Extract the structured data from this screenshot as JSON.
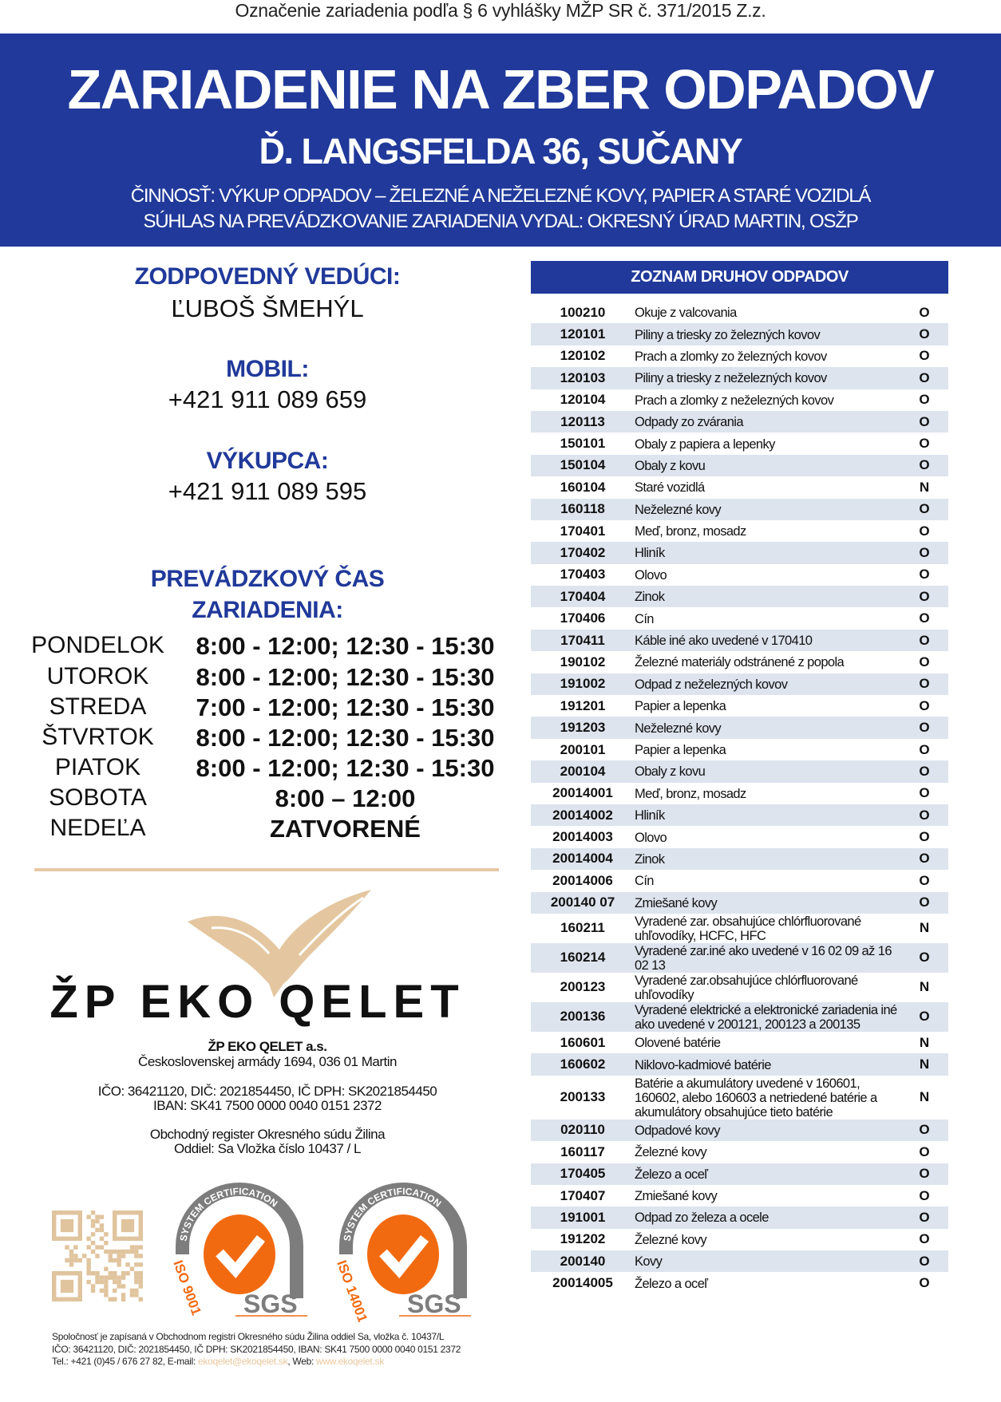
{
  "top_note": "Označenie zariadenia podľa § 6 vyhlášky MŽP SR č. 371/2015 Z.z.",
  "banner": {
    "title": "ZARIADENIE NA ZBER ODPADOV",
    "address": "Ď. LANGSFELDA 36, SUČANY",
    "activity": "ČINNOSŤ: VÝKUP  ODPADOV – ŽELEZNÉ A NEŽELEZNÉ KOVY, PAPIER A STARÉ VOZIDLÁ",
    "permit": "SÚHLAS NA PREVÁDZKOVANIE ZARIADENIA VYDAL: OKRESNÝ ÚRAD MARTIN, OSŽP"
  },
  "contacts": {
    "manager_label": "ZODPOVEDNÝ VEDÚCI:",
    "manager_name": "ĽUBOŠ ŠMEHÝL",
    "mobile_label": "MOBIL:",
    "mobile": "+421 911 089 659",
    "buyer_label": "VÝKUPCA:",
    "buyer": "+421 911 089 595"
  },
  "hours": {
    "title_line1": "PREVÁDZKOVÝ ČAS",
    "title_line2": "ZARIADENIA:",
    "days": [
      {
        "day": "PONDELOK",
        "time": "8:00 - 12:00; 12:30 - 15:30"
      },
      {
        "day": "UTOROK",
        "time": "8:00 - 12:00; 12:30 - 15:30"
      },
      {
        "day": "STREDA",
        "time": "7:00 - 12:00; 12:30 - 15:30"
      },
      {
        "day": "ŠTVRTOK",
        "time": "8:00 - 12:00; 12:30 - 15:30"
      },
      {
        "day": "PIATOK",
        "time": "8:00 - 12:00; 12:30 - 15:30"
      },
      {
        "day": "SOBOTA",
        "time": "8:00 – 12:00"
      },
      {
        "day": "NEDEĽA",
        "time": "ZATVORENÉ"
      }
    ]
  },
  "company": {
    "logo_text": "ŽP EKO QELET",
    "name": "ŽP EKO QELET a.s.",
    "address": "Československej armády 1694, 036 01 Martin",
    "ids": "IČO: 36421120, DIČ: 2021854450, IČ DPH: SK2021854450",
    "iban": "IBAN: SK41 7500 0000 0040 0151 2372",
    "register": "Obchodný register Okresného súdu Žilina",
    "section": "Oddiel: Sa Vložka číslo 10437 / L"
  },
  "certifications": [
    {
      "arc": "SYSTEM CERTIFICATION",
      "standard": "ISO 9001",
      "brand": "SGS"
    },
    {
      "arc": "SYSTEM CERTIFICATION",
      "standard": "ISO 14001",
      "brand": "SGS"
    }
  ],
  "footer": {
    "line1": "Spoločnosť je zapísaná v Obchodnom registri Okresného súdu Žilina oddiel Sa, vložka č. 10437/L",
    "line2": "IČO: 36421120, DIČ: 2021854450, IČ DPH: SK2021854450, IBAN: SK41 7500 0000 0040 0151 2372",
    "tel": "Tel.:  +421 (0)45 / 676 27 82, E-mail: ",
    "email": "ekoqelet@ekoqelet.sk",
    "web_label": ", Web: ",
    "web": "www.ekoqelet.sk"
  },
  "colors": {
    "brand_blue": "#20399a",
    "row_shade": "#dde4ee",
    "beige": "#e6c9a5",
    "sgs_orange": "#f26a10",
    "sgs_gray": "#7d7d7d"
  },
  "waste_list": {
    "title": "ZOZNAM DRUHOV ODPADOV",
    "rows": [
      {
        "code": "100210",
        "desc": "Okuje z valcovania",
        "cat": "O"
      },
      {
        "code": "120101",
        "desc": "Piliny a triesky zo železných kovov",
        "cat": "O"
      },
      {
        "code": "120102",
        "desc": "Prach a zlomky zo železných kovov",
        "cat": "O"
      },
      {
        "code": "120103",
        "desc": "Piliny a triesky z neželezných kovov",
        "cat": "O"
      },
      {
        "code": "120104",
        "desc": "Prach a zlomky z neželezných kovov",
        "cat": "O"
      },
      {
        "code": "120113",
        "desc": "Odpady zo zvárania",
        "cat": "O"
      },
      {
        "code": "150101",
        "desc": "Obaly z papiera a lepenky",
        "cat": "O"
      },
      {
        "code": "150104",
        "desc": "Obaly z kovu",
        "cat": "O"
      },
      {
        "code": "160104",
        "desc": "Staré vozidlá",
        "cat": "N"
      },
      {
        "code": "160118",
        "desc": "Neželezné kovy",
        "cat": "O"
      },
      {
        "code": "170401",
        "desc": "Meď, bronz, mosadz",
        "cat": "O"
      },
      {
        "code": "170402",
        "desc": "Hliník",
        "cat": "O"
      },
      {
        "code": "170403",
        "desc": "Olovo",
        "cat": "O"
      },
      {
        "code": "170404",
        "desc": "Zinok",
        "cat": "O"
      },
      {
        "code": "170406",
        "desc": "Cín",
        "cat": "O"
      },
      {
        "code": "170411",
        "desc": "Káble iné ako uvedené v 170410",
        "cat": "O"
      },
      {
        "code": "190102",
        "desc": "Železné materiály odstránené z popola",
        "cat": "O"
      },
      {
        "code": "191002",
        "desc": "Odpad z neželezných kovov",
        "cat": "O"
      },
      {
        "code": "191201",
        "desc": "Papier a lepenka",
        "cat": "O"
      },
      {
        "code": "191203",
        "desc": "Neželezné kovy",
        "cat": "O"
      },
      {
        "code": "200101",
        "desc": "Papier a lepenka",
        "cat": "O"
      },
      {
        "code": "200104",
        "desc": "Obaly z kovu",
        "cat": "O"
      },
      {
        "code": "20014001",
        "desc": "Meď, bronz, mosadz",
        "cat": "O"
      },
      {
        "code": "20014002",
        "desc": "Hliník",
        "cat": "O"
      },
      {
        "code": "20014003",
        "desc": "Olovo",
        "cat": "O"
      },
      {
        "code": "20014004",
        "desc": "Zinok",
        "cat": "O"
      },
      {
        "code": "20014006",
        "desc": "Cín",
        "cat": "O"
      },
      {
        "code": "200140 07",
        "desc": "Zmiešané kovy",
        "cat": "O"
      },
      {
        "code": "160211",
        "desc": "Vyradené zar. obsahujúce chlórfluorované uhľovodíky, HCFC, HFC",
        "cat": "N",
        "lines": 2
      },
      {
        "code": "160214",
        "desc": "Vyradené zar.iné ako uvedené v 16 02 09 až 16 02 13",
        "cat": "O",
        "lines": 2
      },
      {
        "code": "200123",
        "desc": "Vyradené zar.obsahujúce chlórfluorované uhľovodíky",
        "cat": "N",
        "lines": 2
      },
      {
        "code": "200136",
        "desc": "Vyradené elektrické a elektronické zariadenia iné ako uvedené  v 200121, 200123 a 200135",
        "cat": "O",
        "lines": 2
      },
      {
        "code": "160601",
        "desc": "Olovené batérie",
        "cat": "N"
      },
      {
        "code": "160602",
        "desc": "Niklovo-kadmiové batérie",
        "cat": "N"
      },
      {
        "code": "200133",
        "desc": "Batérie a akumulátory uvedené v 160601, 160602, alebo 160603 a netriedené batérie a akumulátory obsahujúce tieto batérie",
        "cat": "N",
        "lines": 3
      },
      {
        "code": "020110",
        "desc": "Odpadové kovy",
        "cat": "O"
      },
      {
        "code": "160117",
        "desc": "Železné kovy",
        "cat": "O"
      },
      {
        "code": "170405",
        "desc": "Železo a oceľ",
        "cat": "O"
      },
      {
        "code": "170407",
        "desc": "Zmiešané kovy",
        "cat": "O"
      },
      {
        "code": "191001",
        "desc": "Odpad zo železa a ocele",
        "cat": "O"
      },
      {
        "code": "191202",
        "desc": "Železné kovy",
        "cat": "O"
      },
      {
        "code": "200140",
        "desc": "Kovy",
        "cat": "O"
      },
      {
        "code": "20014005",
        "desc": "Železo a oceľ",
        "cat": "O"
      }
    ]
  }
}
